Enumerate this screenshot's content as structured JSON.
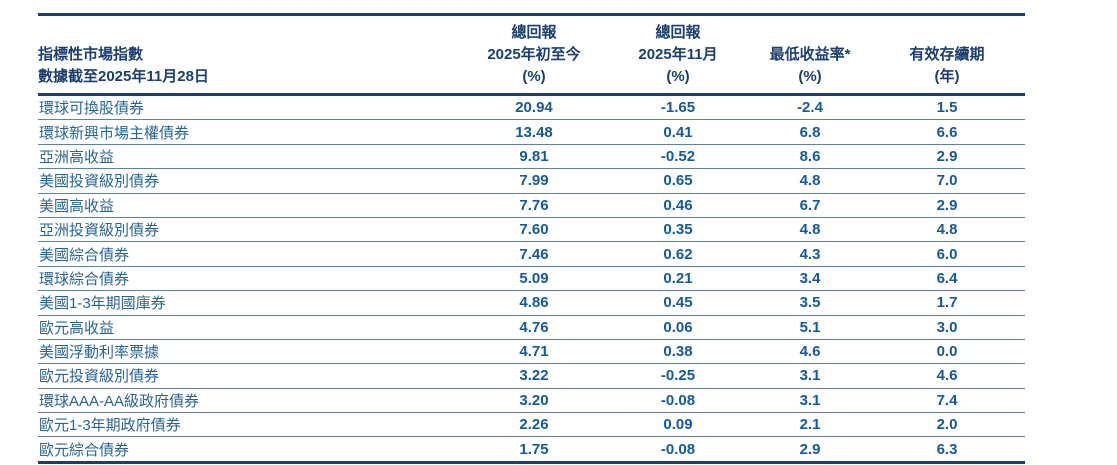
{
  "chart_data": {
    "type": "table",
    "header": {
      "row_label_title": "指標性市場指數",
      "row_label_subtitle": "數據截至2025年11月28日",
      "columns": [
        {
          "line1": "總回報",
          "line2": "2025年初至今",
          "unit": "(%)"
        },
        {
          "line1": "總回報",
          "line2": "2025年11月",
          "unit": "(%)"
        },
        {
          "line1": "",
          "line2": "最低收益率*",
          "unit": "(%)"
        },
        {
          "line1": "",
          "line2": "有效存續期",
          "unit": "(年)"
        }
      ]
    },
    "rows": [
      {
        "label": "環球可換股債券",
        "values": [
          "20.94",
          "-1.65",
          "-2.4",
          "1.5"
        ]
      },
      {
        "label": "環球新興市場主權債券",
        "values": [
          "13.48",
          "0.41",
          "6.8",
          "6.6"
        ]
      },
      {
        "label": "亞洲高收益",
        "values": [
          "9.81",
          "-0.52",
          "8.6",
          "2.9"
        ]
      },
      {
        "label": "美國投資級別債券",
        "values": [
          "7.99",
          "0.65",
          "4.8",
          "7.0"
        ]
      },
      {
        "label": "美國高收益",
        "values": [
          "7.76",
          "0.46",
          "6.7",
          "2.9"
        ]
      },
      {
        "label": "亞洲投資級別債券",
        "values": [
          "7.60",
          "0.35",
          "4.8",
          "4.8"
        ]
      },
      {
        "label": "美國綜合債券",
        "values": [
          "7.46",
          "0.62",
          "4.3",
          "6.0"
        ]
      },
      {
        "label": "環球綜合債券",
        "values": [
          "5.09",
          "0.21",
          "3.4",
          "6.4"
        ]
      },
      {
        "label": "美國1-3年期國庫券",
        "values": [
          "4.86",
          "0.45",
          "3.5",
          "1.7"
        ]
      },
      {
        "label": "歐元高收益",
        "values": [
          "4.76",
          "0.06",
          "5.1",
          "3.0"
        ]
      },
      {
        "label": "美國浮動利率票據",
        "values": [
          "4.71",
          "0.38",
          "4.6",
          "0.0"
        ]
      },
      {
        "label": "歐元投資級別債券",
        "values": [
          "3.22",
          "-0.25",
          "3.1",
          "4.6"
        ]
      },
      {
        "label": "環球AAA-AA級政府債券",
        "values": [
          "3.20",
          "-0.08",
          "3.1",
          "7.4"
        ]
      },
      {
        "label": "歐元1-3年期政府債券",
        "values": [
          "2.26",
          "0.09",
          "2.1",
          "2.0"
        ]
      },
      {
        "label": "歐元綜合債券",
        "values": [
          "1.75",
          "-0.08",
          "2.9",
          "6.3"
        ]
      }
    ]
  },
  "colors": {
    "header_text": "#1b3e6f",
    "label_text": "#2a6496",
    "value_text": "#15599c",
    "thick_border": "#1b3e6f",
    "row_separator": "#5d82a3",
    "background": "#ffffff"
  }
}
